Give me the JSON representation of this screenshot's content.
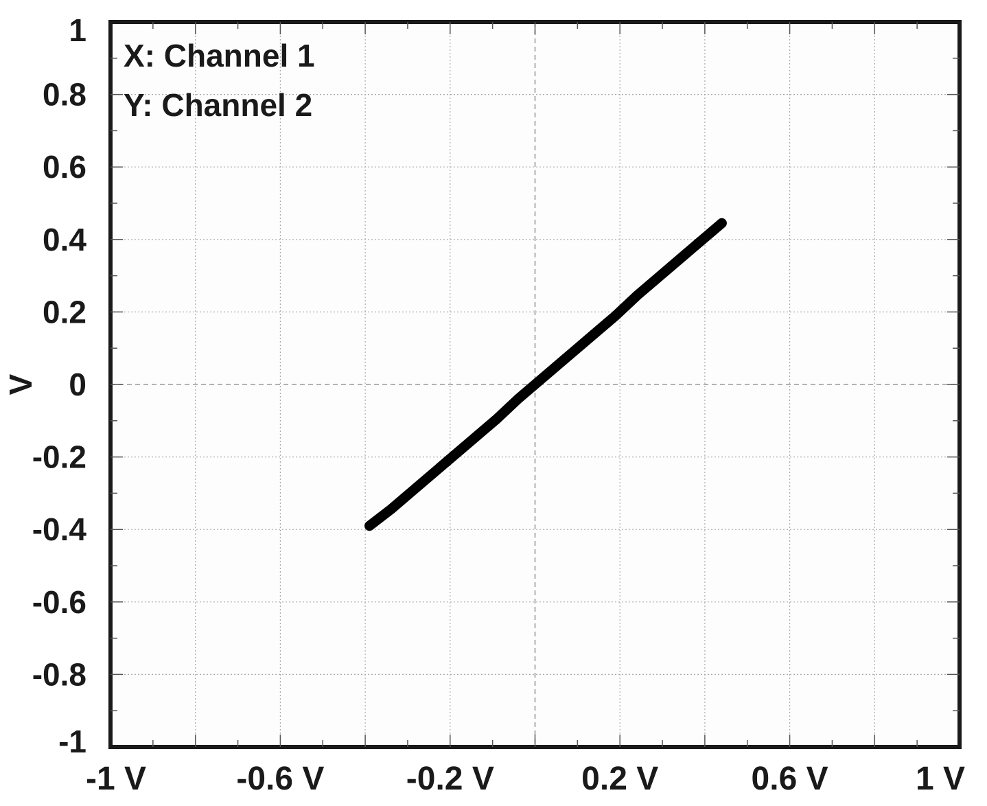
{
  "chart_data": {
    "type": "scatter",
    "title": "",
    "xlabel": "",
    "ylabel": "V",
    "xlim": [
      -1,
      1
    ],
    "ylim": [
      -1,
      1
    ],
    "grid": true,
    "x_tick_labels": [
      "-1 V",
      "-0.6 V",
      "-0.2 V",
      "0.2 V",
      "0.6 V",
      "1 V"
    ],
    "x_ticks": [
      -1,
      -0.6,
      -0.2,
      0.2,
      0.6,
      1
    ],
    "y_tick_labels": [
      "1",
      "0.8",
      "0.6",
      "0.4",
      "0.2",
      "0",
      "-0.2",
      "-0.4",
      "-0.6",
      "-0.8",
      "-1"
    ],
    "y_ticks": [
      1,
      0.8,
      0.6,
      0.4,
      0.2,
      0,
      -0.2,
      -0.4,
      -0.6,
      -0.8,
      -1
    ],
    "annotations": [
      "X: Channel 1",
      "Y: Channel 2"
    ],
    "series": [
      {
        "color": "#000000",
        "x": [
          -0.39,
          -0.34,
          -0.29,
          -0.24,
          -0.19,
          -0.14,
          -0.09,
          -0.04,
          0.0,
          0.04,
          0.09,
          0.14,
          0.19,
          0.24,
          0.29,
          0.34,
          0.39,
          0.44
        ],
        "y": [
          -0.39,
          -0.345,
          -0.295,
          -0.245,
          -0.195,
          -0.145,
          -0.095,
          -0.04,
          0.0,
          0.04,
          0.09,
          0.14,
          0.19,
          0.245,
          0.295,
          0.345,
          0.395,
          0.445
        ]
      }
    ],
    "trace_thickness_v": 0.02
  }
}
